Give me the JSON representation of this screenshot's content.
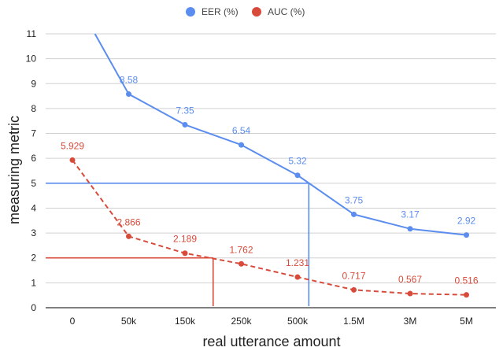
{
  "chart_data": {
    "type": "line",
    "categories": [
      "0",
      "50k",
      "150k",
      "250k",
      "500k",
      "1.5M",
      "3M",
      "5M"
    ],
    "series": [
      {
        "name": "EER (%)",
        "color": "#5B8DEF",
        "style": "solid",
        "values": [
          null,
          8.58,
          7.35,
          6.54,
          5.32,
          3.75,
          3.17,
          2.92
        ],
        "labels": [
          "",
          "8.58",
          "7.35",
          "6.54",
          "5.32",
          "3.75",
          "3.17",
          "2.92"
        ]
      },
      {
        "name": "AUC (%)",
        "color": "#D84A3A",
        "style": "dashed",
        "values": [
          5.929,
          2.866,
          2.189,
          1.762,
          1.231,
          0.717,
          0.567,
          0.516
        ],
        "labels": [
          "5.929",
          "2.866",
          "2.189",
          "1.762",
          "1.231",
          "0.717",
          "0.567",
          "0.516"
        ]
      }
    ],
    "eer_entry": {
      "x": 0.4,
      "y": 11.0
    },
    "reference_lines": [
      {
        "series": "EER (%)",
        "y": 5,
        "x_cross": 4.2
      },
      {
        "series": "AUC (%)",
        "y": 2,
        "x_cross": 2.5
      }
    ],
    "title": "",
    "xlabel": "real utterance amount",
    "ylabel": "measuring metric",
    "ylim": [
      0,
      11
    ],
    "yticks": [
      0,
      1,
      2,
      3,
      4,
      5,
      6,
      7,
      8,
      9,
      10,
      11
    ],
    "grid": true,
    "legend_position": "top-center"
  }
}
